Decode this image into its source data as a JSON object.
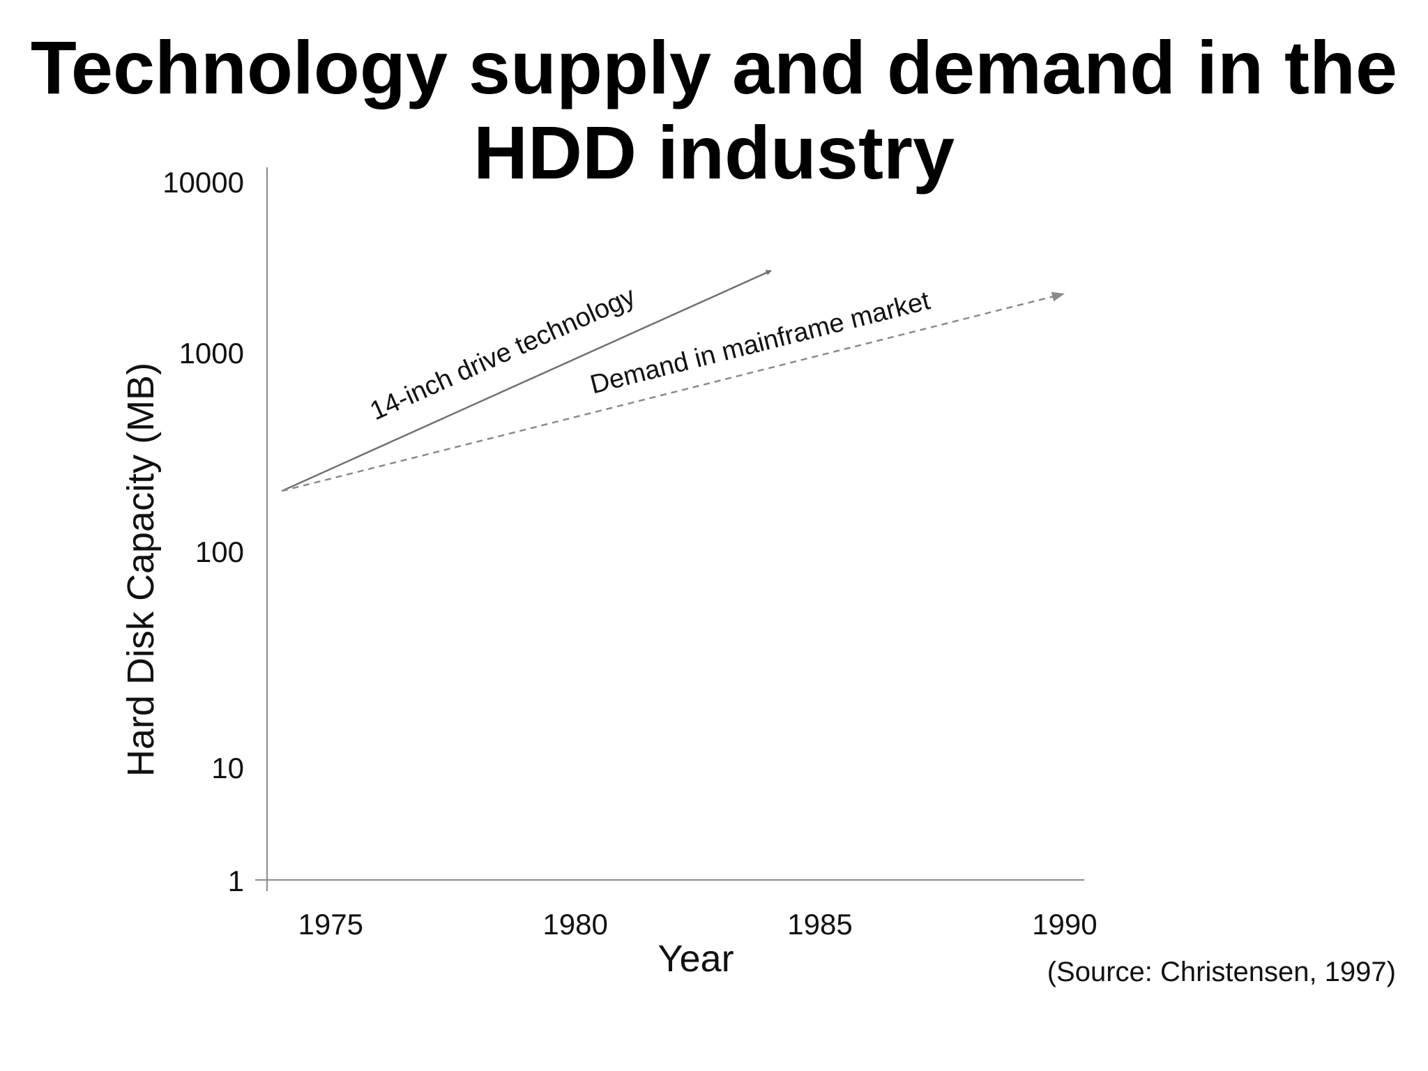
{
  "chart_data": {
    "type": "line",
    "title_lines": [
      "Technology supply and demand in the",
      "HDD industry"
    ],
    "xlabel": "Year",
    "ylabel": "Hard Disk Capacity (MB)",
    "x_ticks": [
      "1975",
      "1980",
      "1985",
      "1990"
    ],
    "y_ticks": [
      "1",
      "10",
      "100",
      "1000",
      "10000"
    ],
    "yscale": "log",
    "xlim": [
      1973.7,
      1990.4
    ],
    "ylim": [
      1,
      10000
    ],
    "grid": false,
    "series": [
      {
        "name": "14-inch drive technology",
        "style": "solid-arrow",
        "color": "#6f6f6f",
        "x": [
          1974,
          1984
        ],
        "y": [
          200,
          3000
        ]
      },
      {
        "name": "Demand in mainframe market",
        "style": "dashed-arrow",
        "color": "#8a8a8a",
        "x": [
          1974,
          1990
        ],
        "y": [
          200,
          2200
        ]
      }
    ]
  },
  "source_note": "(Source: Christensen, 1997)"
}
